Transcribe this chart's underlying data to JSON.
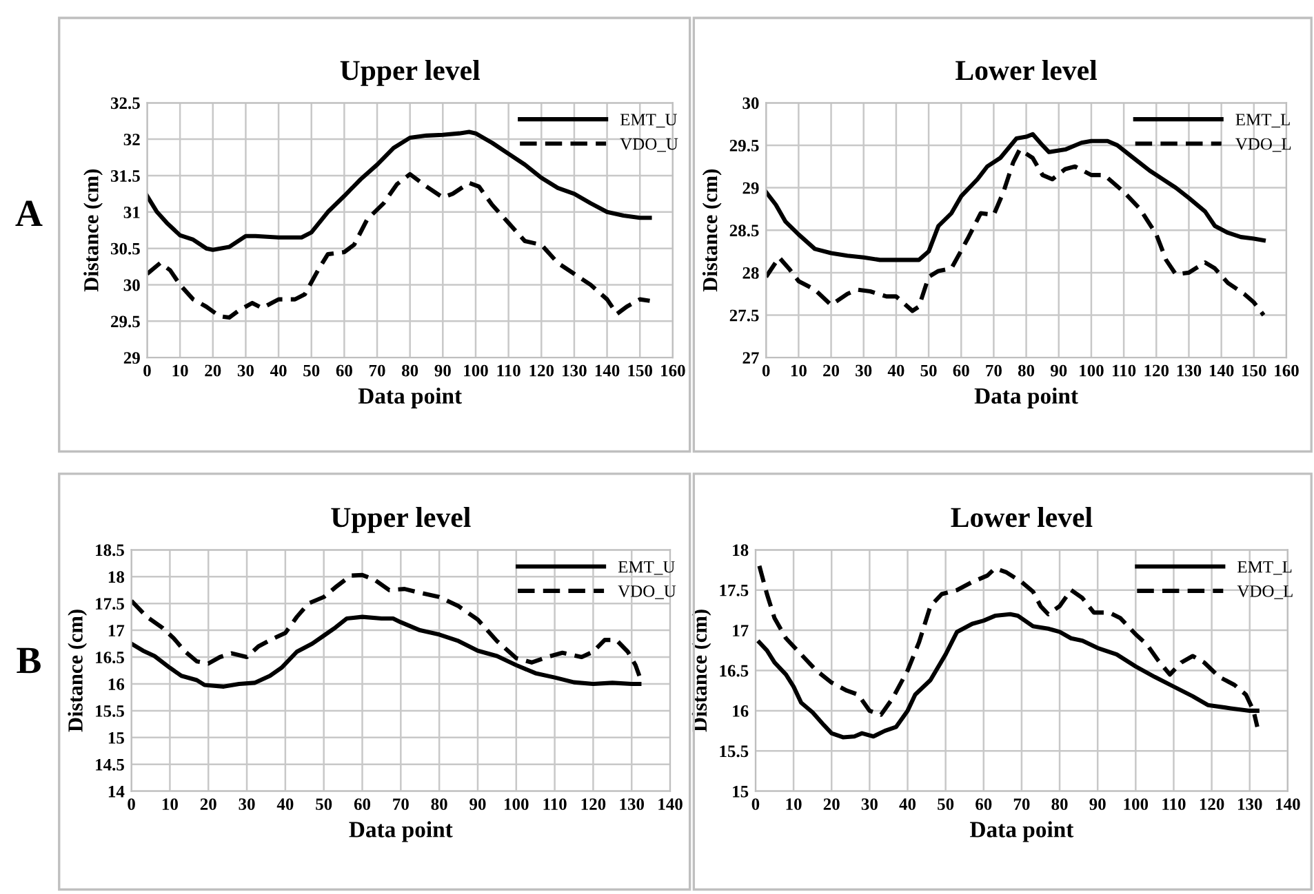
{
  "chart_data": [
    {
      "type": "line",
      "title": "Upper level",
      "xlabel": "Data point",
      "ylabel": "Distance (cm)",
      "annotations": [
        "A"
      ],
      "xlim": [
        0,
        160
      ],
      "xticks": [
        0,
        10,
        20,
        30,
        40,
        50,
        60,
        70,
        80,
        90,
        100,
        110,
        120,
        130,
        140,
        150,
        160
      ],
      "ylim": [
        29,
        32.5
      ],
      "yticks": [
        29,
        29.5,
        30,
        30.5,
        31,
        31.5,
        32,
        32.5
      ],
      "grid": true,
      "legend": "top right",
      "marker": "none",
      "series": [
        {
          "name": "EMT_U",
          "color": "#000000",
          "line_style": "solid",
          "x": [
            0,
            3,
            6,
            10,
            14,
            18,
            20,
            25,
            30,
            33,
            40,
            47,
            50,
            55,
            60,
            65,
            70,
            75,
            80,
            85,
            90,
            95,
            98,
            100,
            105,
            110,
            115,
            120,
            125,
            130,
            135,
            140,
            145,
            150,
            153
          ],
          "values": [
            31.22,
            31.0,
            30.85,
            30.68,
            30.62,
            30.5,
            30.48,
            30.52,
            30.67,
            30.67,
            30.65,
            30.65,
            30.72,
            31.0,
            31.22,
            31.45,
            31.65,
            31.88,
            32.02,
            32.05,
            32.06,
            32.08,
            32.1,
            32.08,
            31.95,
            31.8,
            31.65,
            31.47,
            31.33,
            31.25,
            31.12,
            31.0,
            30.95,
            30.92,
            30.92
          ]
        },
        {
          "name": "VDO_U",
          "color": "#000000",
          "line_style": "dashed",
          "x": [
            0,
            4,
            7,
            10,
            14,
            18,
            22,
            25,
            28,
            32,
            35,
            40,
            45,
            48,
            52,
            55,
            60,
            63,
            67,
            72,
            76,
            80,
            85,
            90,
            93,
            98,
            101,
            105,
            110,
            115,
            120,
            125,
            130,
            135,
            140,
            143,
            146,
            150,
            153
          ],
          "values": [
            30.15,
            30.3,
            30.2,
            30.0,
            29.8,
            29.7,
            29.57,
            29.55,
            29.65,
            29.75,
            29.68,
            29.8,
            29.8,
            29.87,
            30.2,
            30.42,
            30.45,
            30.55,
            30.9,
            31.12,
            31.38,
            31.52,
            31.35,
            31.2,
            31.25,
            31.4,
            31.35,
            31.1,
            30.85,
            30.6,
            30.55,
            30.3,
            30.15,
            30.0,
            29.8,
            29.6,
            29.7,
            29.8,
            29.78
          ]
        }
      ]
    },
    {
      "type": "line",
      "title": "Lower level",
      "xlabel": "Data point",
      "ylabel": "Distance (cm)",
      "xlim": [
        0,
        160
      ],
      "xticks": [
        0,
        10,
        20,
        30,
        40,
        50,
        60,
        70,
        80,
        90,
        100,
        110,
        120,
        130,
        140,
        150,
        160
      ],
      "ylim": [
        27,
        30
      ],
      "yticks": [
        27,
        27.5,
        28,
        28.5,
        29,
        29.5,
        30
      ],
      "grid": true,
      "legend": "top right",
      "marker": "none",
      "series": [
        {
          "name": "EMT_L",
          "color": "#000000",
          "line_style": "solid",
          "x": [
            0,
            3,
            6,
            10,
            15,
            20,
            25,
            30,
            35,
            40,
            47,
            50,
            53,
            57,
            60,
            65,
            68,
            72,
            77,
            80,
            82,
            85,
            87,
            92,
            97,
            100,
            105,
            108,
            112,
            118,
            122,
            126,
            130,
            135,
            138,
            142,
            146,
            150,
            153
          ],
          "values": [
            28.95,
            28.8,
            28.6,
            28.45,
            28.28,
            28.23,
            28.2,
            28.18,
            28.15,
            28.15,
            28.15,
            28.25,
            28.55,
            28.7,
            28.9,
            29.1,
            29.25,
            29.35,
            29.58,
            29.6,
            29.63,
            29.5,
            29.42,
            29.45,
            29.53,
            29.55,
            29.55,
            29.5,
            29.38,
            29.2,
            29.1,
            29.0,
            28.88,
            28.72,
            28.55,
            28.47,
            28.42,
            28.4,
            28.38
          ]
        },
        {
          "name": "VDO_L",
          "color": "#000000",
          "line_style": "dashed",
          "x": [
            0,
            4,
            7,
            10,
            15,
            20,
            25,
            28,
            32,
            37,
            40,
            45,
            47,
            50,
            53,
            57,
            62,
            66,
            70,
            73,
            76,
            78,
            82,
            85,
            88,
            92,
            95,
            100,
            104,
            110,
            115,
            120,
            123,
            126,
            130,
            135,
            138,
            142,
            147,
            150,
            153
          ],
          "values": [
            27.95,
            28.18,
            28.05,
            27.9,
            27.8,
            27.62,
            27.75,
            27.8,
            27.78,
            27.72,
            27.72,
            27.55,
            27.6,
            27.95,
            28.02,
            28.05,
            28.4,
            28.7,
            28.68,
            28.95,
            29.3,
            29.45,
            29.35,
            29.15,
            29.1,
            29.22,
            29.25,
            29.15,
            29.15,
            28.95,
            28.75,
            28.45,
            28.15,
            27.98,
            28.0,
            28.12,
            28.05,
            27.88,
            27.75,
            27.65,
            27.5
          ]
        }
      ]
    },
    {
      "type": "line",
      "title": "Upper level",
      "xlabel": "Data point",
      "ylabel": "Distance (cm)",
      "annotations": [
        "B"
      ],
      "xlim": [
        0,
        140
      ],
      "xticks": [
        0,
        10,
        20,
        30,
        40,
        50,
        60,
        70,
        80,
        90,
        100,
        110,
        120,
        130,
        140
      ],
      "ylim": [
        14,
        18.5
      ],
      "yticks": [
        14,
        14.5,
        15,
        15.5,
        16,
        16.5,
        17,
        17.5,
        18,
        18.5
      ],
      "grid": true,
      "legend": "top right",
      "marker": "none",
      "series": [
        {
          "name": "EMT_U",
          "color": "#000000",
          "line_style": "solid",
          "x": [
            0,
            3,
            6,
            10,
            13,
            17,
            19,
            24,
            28,
            32,
            36,
            39,
            43,
            47,
            50,
            53,
            56,
            60,
            65,
            68,
            70,
            75,
            80,
            85,
            90,
            95,
            100,
            105,
            110,
            115,
            120,
            125,
            130,
            132
          ],
          "values": [
            16.75,
            16.62,
            16.52,
            16.3,
            16.15,
            16.07,
            15.98,
            15.95,
            16.0,
            16.02,
            16.15,
            16.3,
            16.6,
            16.75,
            16.9,
            17.05,
            17.22,
            17.25,
            17.22,
            17.22,
            17.15,
            17.0,
            16.92,
            16.8,
            16.62,
            16.52,
            16.35,
            16.2,
            16.12,
            16.03,
            16.0,
            16.02,
            16.0,
            16.0
          ]
        },
        {
          "name": "VDO_U",
          "color": "#000000",
          "line_style": "dashed",
          "x": [
            0,
            4,
            8,
            11,
            14,
            17,
            20,
            23,
            26,
            30,
            33,
            37,
            40,
            43,
            46,
            50,
            53,
            57,
            60,
            63,
            67,
            71,
            75,
            80,
            85,
            90,
            95,
            100,
            104,
            108,
            112,
            117,
            120,
            123,
            126,
            129,
            131,
            132
          ],
          "values": [
            17.55,
            17.25,
            17.05,
            16.85,
            16.6,
            16.42,
            16.38,
            16.5,
            16.57,
            16.5,
            16.7,
            16.85,
            16.95,
            17.25,
            17.5,
            17.62,
            17.8,
            18.02,
            18.03,
            17.95,
            17.75,
            17.77,
            17.7,
            17.62,
            17.45,
            17.2,
            16.8,
            16.48,
            16.4,
            16.5,
            16.58,
            16.5,
            16.6,
            16.82,
            16.82,
            16.6,
            16.35,
            16.15
          ]
        }
      ]
    },
    {
      "type": "line",
      "title": "Lower level",
      "xlabel": "Data point",
      "ylabel": "Distance (cm)",
      "xlim": [
        0,
        140
      ],
      "xticks": [
        0,
        10,
        20,
        30,
        40,
        50,
        60,
        70,
        80,
        90,
        100,
        110,
        120,
        130,
        140
      ],
      "ylim": [
        15,
        18
      ],
      "yticks": [
        15,
        15.5,
        16,
        16.5,
        17,
        17.5,
        18
      ],
      "grid": true,
      "legend": "top right",
      "marker": "none",
      "series": [
        {
          "name": "EMT_L",
          "color": "#000000",
          "line_style": "solid",
          "x": [
            1,
            3,
            5,
            8,
            10,
            12,
            15,
            18,
            20,
            23,
            26,
            28,
            31,
            34,
            37,
            40,
            42,
            46,
            50,
            53,
            57,
            60,
            63,
            67,
            69,
            73,
            77,
            80,
            83,
            86,
            90,
            95,
            100,
            105,
            110,
            115,
            119,
            125,
            130,
            132
          ],
          "values": [
            16.85,
            16.75,
            16.6,
            16.45,
            16.3,
            16.1,
            15.98,
            15.82,
            15.72,
            15.67,
            15.68,
            15.72,
            15.68,
            15.75,
            15.8,
            16.0,
            16.2,
            16.38,
            16.7,
            16.98,
            17.08,
            17.12,
            17.18,
            17.2,
            17.18,
            17.05,
            17.02,
            16.98,
            16.9,
            16.87,
            16.78,
            16.7,
            16.55,
            16.42,
            16.3,
            16.18,
            16.07,
            16.03,
            16.0,
            16.0
          ]
        },
        {
          "name": "VDO_L",
          "color": "#000000",
          "line_style": "dashed",
          "x": [
            1,
            3,
            5,
            8,
            12,
            16,
            20,
            24,
            27,
            30,
            33,
            36,
            40,
            43,
            46,
            49,
            53,
            57,
            61,
            63,
            66,
            70,
            73,
            75,
            77,
            80,
            83,
            86,
            89,
            93,
            96,
            100,
            103,
            106,
            109,
            112,
            115,
            118,
            122,
            126,
            129,
            131,
            132
          ],
          "values": [
            17.8,
            17.45,
            17.15,
            16.9,
            16.7,
            16.5,
            16.35,
            16.25,
            16.2,
            16.0,
            15.95,
            16.15,
            16.5,
            16.85,
            17.3,
            17.45,
            17.5,
            17.6,
            17.68,
            17.77,
            17.72,
            17.6,
            17.48,
            17.3,
            17.2,
            17.3,
            17.5,
            17.4,
            17.22,
            17.22,
            17.15,
            16.95,
            16.82,
            16.62,
            16.45,
            16.6,
            16.68,
            16.6,
            16.42,
            16.32,
            16.2,
            16.0,
            15.8
          ]
        }
      ]
    }
  ]
}
